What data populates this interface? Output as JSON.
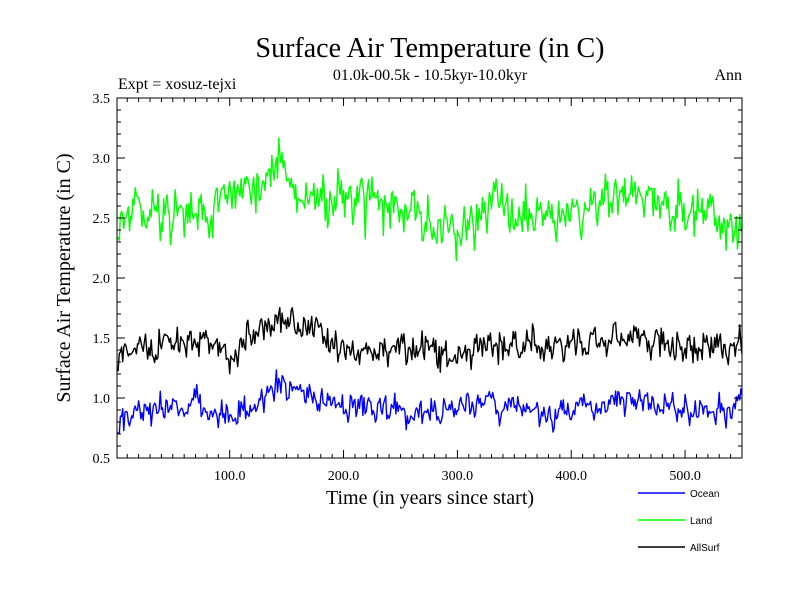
{
  "chart_data": {
    "type": "line",
    "title": "Surface Air Temperature (in C)",
    "subtitle": "01.0k-00.5k - 10.5kyr-10.0kyr",
    "experiment_label": "Expt = xosuz-tejxi",
    "season_label": "Ann",
    "xlabel": "Time (in years since start)",
    "ylabel": "Surface Air Temperature (in C)",
    "xlim": [
      1,
      550
    ],
    "ylim": [
      0.5,
      3.5
    ],
    "x_ticks": [
      100,
      200,
      300,
      400,
      500
    ],
    "x_tick_labels": [
      "100.0",
      "200.0",
      "300.0",
      "400.0",
      "500.0"
    ],
    "y_ticks": [
      0.5,
      1.0,
      1.5,
      2.0,
      2.5,
      3.0,
      3.5
    ],
    "y_tick_labels": [
      "0.5",
      "1.0",
      "1.5",
      "2.0",
      "2.5",
      "3.0",
      "3.5"
    ],
    "series": [
      {
        "name": "Ocean",
        "color": "#0000ff",
        "mean": 0.92,
        "amplitude": 0.13,
        "seed": 11,
        "x": [
          1,
          20,
          50,
          80,
          100,
          130,
          140,
          160,
          200,
          250,
          300,
          330,
          380,
          420,
          460,
          500,
          550
        ],
        "values": [
          0.65,
          0.85,
          0.9,
          1.0,
          0.75,
          1.05,
          1.25,
          1.2,
          0.95,
          0.9,
          0.85,
          1.0,
          0.8,
          1.0,
          1.0,
          0.85,
          0.9
        ]
      },
      {
        "name": "Land",
        "color": "#00ff00",
        "mean": 2.6,
        "amplitude": 0.22,
        "seed": 29,
        "x": [
          1,
          20,
          50,
          80,
          100,
          130,
          140,
          160,
          200,
          250,
          300,
          330,
          380,
          420,
          460,
          500,
          550
        ],
        "values": [
          2.3,
          2.7,
          2.5,
          2.6,
          2.7,
          2.9,
          3.3,
          2.8,
          2.7,
          2.6,
          2.2,
          2.6,
          2.4,
          2.7,
          2.8,
          2.5,
          2.2
        ]
      },
      {
        "name": "AllSurf",
        "color": "#000000",
        "mean": 1.43,
        "amplitude": 0.15,
        "seed": 47,
        "x": [
          1,
          20,
          50,
          80,
          100,
          130,
          140,
          160,
          200,
          250,
          300,
          330,
          380,
          420,
          460,
          500,
          550
        ],
        "values": [
          1.2,
          1.45,
          1.4,
          1.6,
          1.3,
          1.7,
          1.9,
          1.75,
          1.45,
          1.4,
          1.3,
          1.5,
          1.35,
          1.5,
          1.55,
          1.4,
          1.45
        ]
      }
    ],
    "legend_position": "bottom-right"
  }
}
